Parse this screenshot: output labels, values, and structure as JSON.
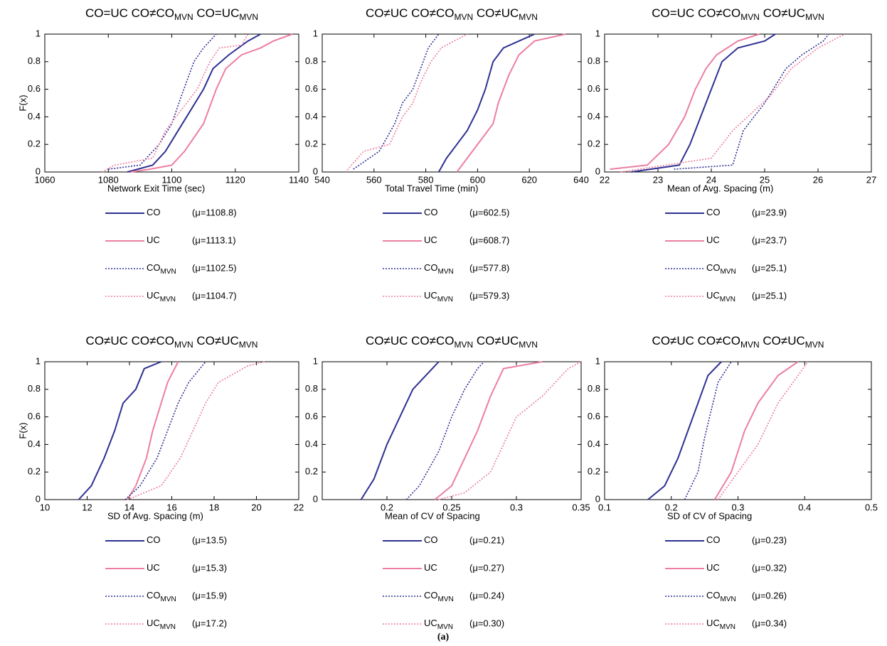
{
  "chart_data": [
    {
      "type": "line",
      "title_parts": [
        "CO=UC CO≠CO",
        "MVN",
        " CO=UC",
        "MVN"
      ],
      "xlabel": "Network Exit Time (sec)",
      "ylabel": "F(x)",
      "xlim": [
        1060,
        1140
      ],
      "xticks": [
        1060,
        1080,
        1100,
        1120,
        1140
      ],
      "ylim": [
        0,
        1
      ],
      "yticks": [
        0,
        0.2,
        0.4,
        0.6,
        0.8,
        1
      ],
      "series": [
        {
          "name": "CO",
          "color": "#2e3192",
          "dash": false,
          "note": "(μ=1108.8)",
          "x": [
            1086,
            1094,
            1098,
            1102,
            1106,
            1110,
            1113,
            1118,
            1124,
            1128
          ],
          "values": [
            0,
            0.05,
            0.15,
            0.3,
            0.45,
            0.6,
            0.75,
            0.85,
            0.95,
            1
          ]
        },
        {
          "name": "UC",
          "color": "#ec7fa0",
          "dash": false,
          "note": "(μ=1113.1)",
          "x": [
            1087,
            1093,
            1100,
            1104,
            1110,
            1114,
            1117,
            1122,
            1128,
            1132,
            1138
          ],
          "values": [
            0,
            0.02,
            0.05,
            0.15,
            0.35,
            0.6,
            0.75,
            0.85,
            0.9,
            0.95,
            1
          ]
        },
        {
          "name": "CO",
          "name_sub": "MVN",
          "color": "#2e3192",
          "dash": true,
          "note": "(μ=1102.5)",
          "x": [
            1080,
            1090,
            1096,
            1100,
            1103,
            1107,
            1110,
            1114
          ],
          "values": [
            0.02,
            0.05,
            0.2,
            0.35,
            0.55,
            0.8,
            0.9,
            1
          ]
        },
        {
          "name": "UC",
          "name_sub": "MVN",
          "color": "#ec7fa0",
          "dash": true,
          "note": "(μ=1104.7)",
          "x": [
            1078,
            1082,
            1094,
            1098,
            1103,
            1108,
            1112,
            1115,
            1122,
            1124
          ],
          "values": [
            0,
            0.05,
            0.1,
            0.3,
            0.45,
            0.6,
            0.8,
            0.9,
            0.92,
            1
          ]
        }
      ]
    },
    {
      "type": "line",
      "title_parts": [
        "CO≠UC CO≠CO",
        "MVN",
        " CO≠UC",
        "MVN"
      ],
      "xlabel": "Total Travel Time (min)",
      "xlim": [
        540,
        640
      ],
      "xticks": [
        540,
        560,
        580,
        600,
        620,
        640
      ],
      "ylim": [
        0,
        1
      ],
      "yticks": [
        0,
        0.2,
        0.4,
        0.6,
        0.8,
        1
      ],
      "series": [
        {
          "name": "CO",
          "color": "#2e3192",
          "dash": false,
          "note": "(μ=602.5)",
          "x": [
            585,
            588,
            592,
            596,
            600,
            603,
            606,
            610,
            616,
            622
          ],
          "values": [
            0,
            0.1,
            0.2,
            0.3,
            0.45,
            0.6,
            0.8,
            0.9,
            0.95,
            1
          ]
        },
        {
          "name": "UC",
          "color": "#ec7fa0",
          "dash": false,
          "note": "(μ=608.7)",
          "x": [
            592,
            596,
            602,
            606,
            608,
            612,
            616,
            622,
            634
          ],
          "values": [
            0,
            0.1,
            0.25,
            0.35,
            0.5,
            0.7,
            0.85,
            0.95,
            1
          ]
        },
        {
          "name": "CO",
          "name_sub": "MVN",
          "color": "#2e3192",
          "dash": true,
          "note": "(μ=577.8)",
          "x": [
            552,
            562,
            568,
            571,
            575,
            578,
            581,
            585
          ],
          "values": [
            0.02,
            0.15,
            0.35,
            0.5,
            0.6,
            0.75,
            0.9,
            1
          ]
        },
        {
          "name": "UC",
          "name_sub": "MVN",
          "color": "#ec7fa0",
          "dash": true,
          "note": "(μ=579.3)",
          "x": [
            549,
            556,
            566,
            571,
            575,
            578,
            582,
            586,
            596
          ],
          "values": [
            0,
            0.15,
            0.2,
            0.4,
            0.5,
            0.65,
            0.8,
            0.9,
            1
          ]
        }
      ]
    },
    {
      "type": "line",
      "title_parts": [
        "CO=UC CO≠CO",
        "MVN",
        " CO≠UC",
        "MVN"
      ],
      "xlabel": "Mean of Avg. Spacing (m)",
      "xlim": [
        22,
        27
      ],
      "xticks": [
        22,
        23,
        24,
        25,
        26,
        27
      ],
      "ylim": [
        0,
        1
      ],
      "yticks": [
        0,
        0.2,
        0.4,
        0.6,
        0.8,
        1
      ],
      "series": [
        {
          "name": "CO",
          "color": "#2e3192",
          "dash": false,
          "note": "(μ=23.9)",
          "x": [
            22.5,
            23.4,
            23.6,
            23.8,
            24.0,
            24.2,
            24.5,
            25.0,
            25.2
          ],
          "values": [
            0,
            0.05,
            0.2,
            0.4,
            0.6,
            0.8,
            0.9,
            0.95,
            1
          ]
        },
        {
          "name": "UC",
          "color": "#ec7fa0",
          "dash": false,
          "note": "(μ=23.7)",
          "x": [
            22.1,
            22.8,
            23.2,
            23.5,
            23.7,
            23.9,
            24.1,
            24.5,
            24.9
          ],
          "values": [
            0.02,
            0.05,
            0.2,
            0.4,
            0.6,
            0.75,
            0.85,
            0.95,
            1
          ]
        },
        {
          "name": "CO",
          "name_sub": "MVN",
          "color": "#2e3192",
          "dash": true,
          "note": "(μ=25.1)",
          "x": [
            23.3,
            24.4,
            24.6,
            25.0,
            25.4,
            25.7,
            26.1,
            26.2
          ],
          "values": [
            0.02,
            0.05,
            0.3,
            0.5,
            0.75,
            0.85,
            0.95,
            1
          ]
        },
        {
          "name": "UC",
          "name_sub": "MVN",
          "color": "#ec7fa0",
          "dash": true,
          "note": "(μ=25.1)",
          "x": [
            22.3,
            24.0,
            24.4,
            25.1,
            25.5,
            26.0,
            26.5
          ],
          "values": [
            0,
            0.1,
            0.3,
            0.55,
            0.75,
            0.9,
            1
          ]
        }
      ]
    },
    {
      "type": "line",
      "title_parts": [
        "CO≠UC CO≠CO",
        "MVN",
        " CO≠UC",
        "MVN"
      ],
      "xlabel": "SD of Avg. Spacing (m)",
      "ylabel": "F(x)",
      "xlim": [
        10,
        22
      ],
      "xticks": [
        10,
        12,
        14,
        16,
        18,
        20,
        22
      ],
      "ylim": [
        0,
        1
      ],
      "yticks": [
        0,
        0.2,
        0.4,
        0.6,
        0.8,
        1
      ],
      "series": [
        {
          "name": "CO",
          "color": "#2e3192",
          "dash": false,
          "note": "(μ=13.5)",
          "x": [
            11.6,
            12.2,
            12.8,
            13.3,
            13.7,
            14.3,
            14.7,
            15.5
          ],
          "values": [
            0,
            0.1,
            0.3,
            0.5,
            0.7,
            0.8,
            0.95,
            1
          ]
        },
        {
          "name": "UC",
          "color": "#ec7fa0",
          "dash": false,
          "note": "(μ=15.3)",
          "x": [
            13.9,
            14.3,
            14.8,
            15.1,
            15.5,
            15.8,
            16.3
          ],
          "values": [
            0,
            0.1,
            0.3,
            0.5,
            0.7,
            0.85,
            1
          ]
        },
        {
          "name": "CO",
          "name_sub": "MVN",
          "color": "#2e3192",
          "dash": true,
          "note": "(μ=15.9)",
          "x": [
            13.8,
            14.5,
            15.3,
            15.8,
            16.3,
            16.8,
            17.6
          ],
          "values": [
            0,
            0.1,
            0.3,
            0.5,
            0.7,
            0.85,
            1
          ]
        },
        {
          "name": "UC",
          "name_sub": "MVN",
          "color": "#ec7fa0",
          "dash": true,
          "note": "(μ=17.2)",
          "x": [
            13.9,
            15.5,
            16.4,
            17.0,
            17.6,
            18.2,
            19.6,
            20.4
          ],
          "values": [
            0,
            0.1,
            0.3,
            0.5,
            0.7,
            0.85,
            0.97,
            1
          ]
        }
      ]
    },
    {
      "type": "line",
      "title_parts": [
        "CO≠UC CO≠CO",
        "MVN",
        " CO≠UC",
        "MVN"
      ],
      "xlabel": "Mean of CV of Spacing",
      "xlim": [
        0.15,
        0.35
      ],
      "xticks": [
        0.2,
        0.25,
        0.3,
        0.35
      ],
      "ylim": [
        0,
        1
      ],
      "yticks": [
        0,
        0.2,
        0.4,
        0.6,
        0.8,
        1
      ],
      "series": [
        {
          "name": "CO",
          "color": "#2e3192",
          "dash": false,
          "note": "(μ=0.21)",
          "x": [
            0.18,
            0.19,
            0.2,
            0.21,
            0.22,
            0.235,
            0.24
          ],
          "values": [
            0,
            0.15,
            0.4,
            0.6,
            0.8,
            0.95,
            1
          ]
        },
        {
          "name": "UC",
          "color": "#ec7fa0",
          "dash": false,
          "note": "(μ=0.27)",
          "x": [
            0.237,
            0.25,
            0.26,
            0.27,
            0.28,
            0.29,
            0.32
          ],
          "values": [
            0,
            0.1,
            0.3,
            0.5,
            0.75,
            0.95,
            1
          ]
        },
        {
          "name": "CO",
          "name_sub": "MVN",
          "color": "#2e3192",
          "dash": true,
          "note": "(μ=0.24)",
          "x": [
            0.215,
            0.225,
            0.24,
            0.25,
            0.26,
            0.27,
            0.275
          ],
          "values": [
            0,
            0.1,
            0.35,
            0.6,
            0.8,
            0.95,
            1
          ]
        },
        {
          "name": "UC",
          "name_sub": "MVN",
          "color": "#ec7fa0",
          "dash": true,
          "note": "(μ=0.30)",
          "x": [
            0.24,
            0.26,
            0.28,
            0.29,
            0.3,
            0.32,
            0.34,
            0.35
          ],
          "values": [
            0,
            0.05,
            0.2,
            0.4,
            0.6,
            0.75,
            0.95,
            1
          ]
        }
      ]
    },
    {
      "type": "line",
      "title_parts": [
        "CO≠UC CO≠CO",
        "MVN",
        " CO≠UC",
        "MVN"
      ],
      "xlabel": "SD of CV of Spacing",
      "xlim": [
        0.1,
        0.5
      ],
      "xticks": [
        0.1,
        0.2,
        0.3,
        0.4,
        0.5
      ],
      "ylim": [
        0,
        1
      ],
      "yticks": [
        0,
        0.2,
        0.4,
        0.6,
        0.8,
        1
      ],
      "series": [
        {
          "name": "CO",
          "color": "#2e3192",
          "dash": false,
          "note": "(μ=0.23)",
          "x": [
            0.165,
            0.19,
            0.21,
            0.225,
            0.24,
            0.255,
            0.275
          ],
          "values": [
            0,
            0.1,
            0.3,
            0.5,
            0.7,
            0.9,
            1
          ]
        },
        {
          "name": "UC",
          "color": "#ec7fa0",
          "dash": false,
          "note": "(μ=0.32)",
          "x": [
            0.265,
            0.29,
            0.31,
            0.33,
            0.36,
            0.39
          ],
          "values": [
            0,
            0.2,
            0.5,
            0.7,
            0.9,
            1
          ]
        },
        {
          "name": "CO",
          "name_sub": "MVN",
          "color": "#2e3192",
          "dash": true,
          "note": "(μ=0.26)",
          "x": [
            0.22,
            0.24,
            0.25,
            0.26,
            0.27,
            0.29
          ],
          "values": [
            0,
            0.2,
            0.45,
            0.65,
            0.85,
            1
          ]
        },
        {
          "name": "UC",
          "name_sub": "MVN",
          "color": "#ec7fa0",
          "dash": true,
          "note": "(μ=0.34)",
          "x": [
            0.27,
            0.3,
            0.33,
            0.36,
            0.39,
            0.405
          ],
          "values": [
            0,
            0.2,
            0.4,
            0.7,
            0.9,
            1
          ]
        }
      ]
    }
  ],
  "caption": "(a)"
}
